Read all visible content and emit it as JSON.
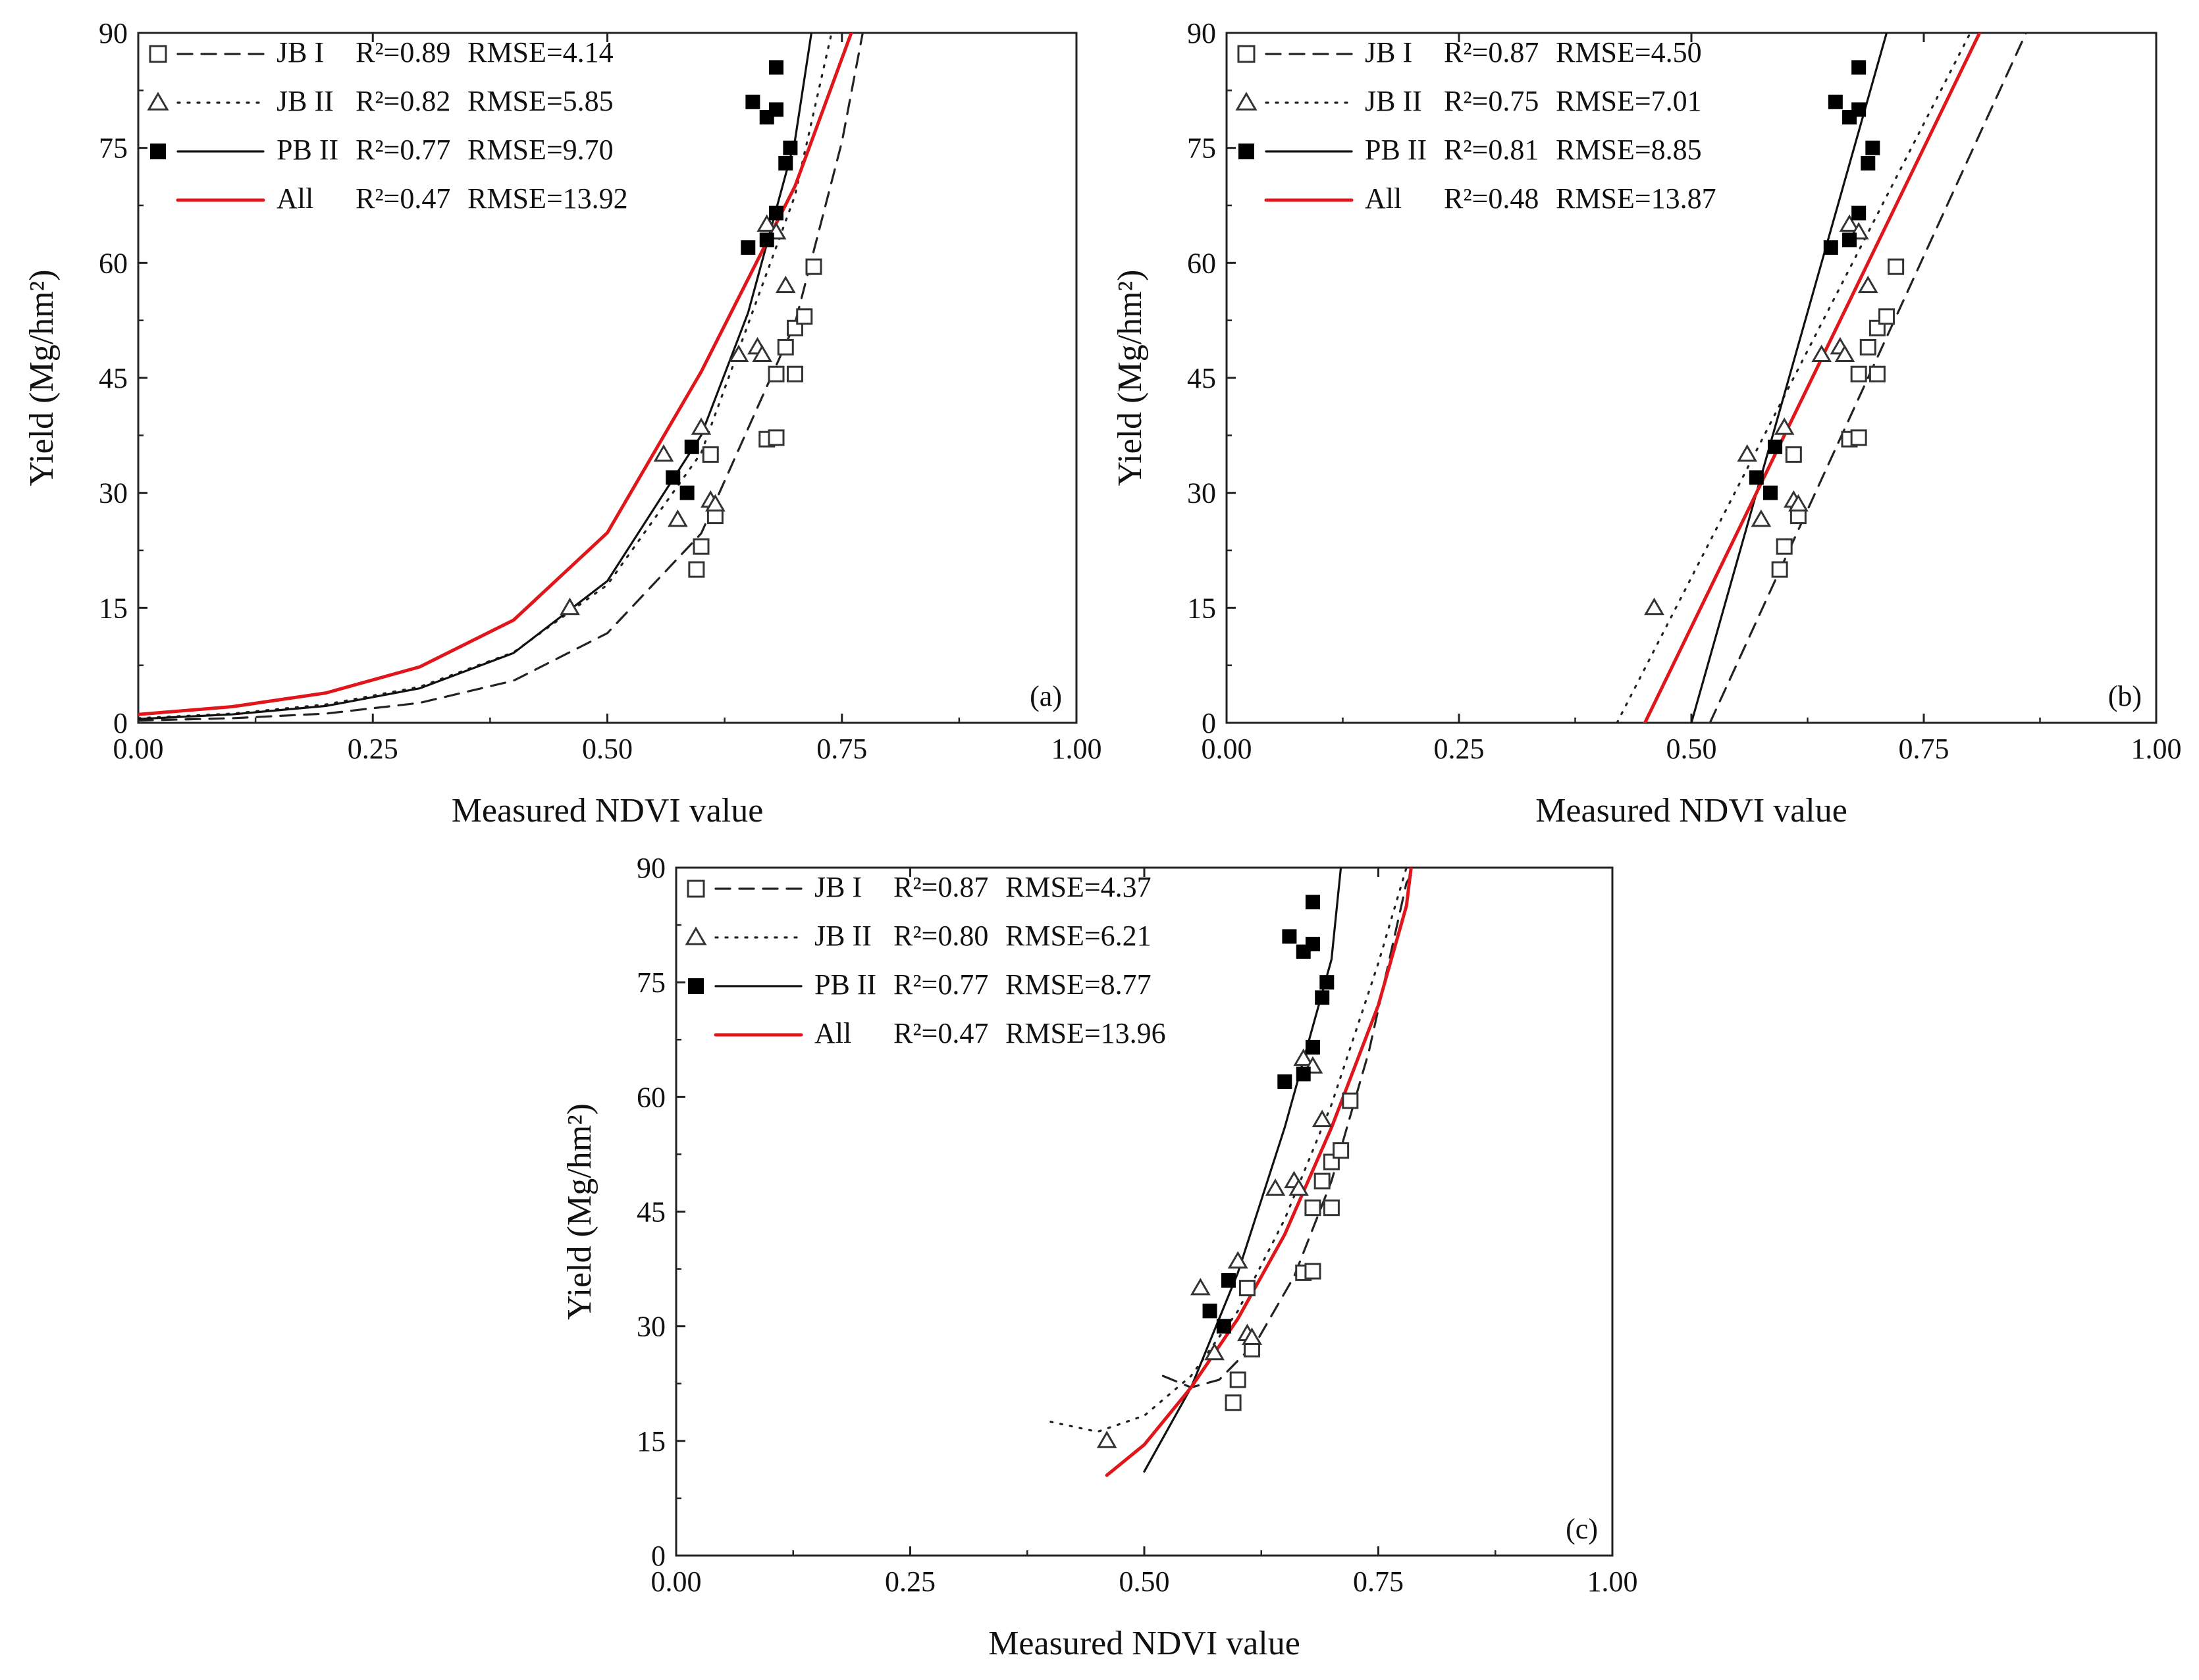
{
  "chart_data": [
    {
      "type": "scatter",
      "panel": "a",
      "panel_label": "(a)",
      "model": "exponential",
      "xlabel": "Measured NDVI value",
      "ylabel": "Yield (Mg/hm²)",
      "xlim": [
        0,
        1
      ],
      "ylim": [
        0,
        90
      ],
      "x_ticks": [
        "0.00",
        "0.25",
        "0.50",
        "0.75",
        "1.00"
      ],
      "y_ticks": [
        "0",
        "15",
        "30",
        "45",
        "60",
        "75",
        "90"
      ],
      "series": [
        {
          "key": "jb1",
          "name": "JB I",
          "r2_text": "R²=0.89",
          "rmse_text": "RMSE=4.14",
          "marker": "open-square",
          "line": "dashed",
          "color": "#222222",
          "fit_points": [
            [
              0,
              0.3
            ],
            [
              0.1,
              0.6
            ],
            [
              0.2,
              1.2
            ],
            [
              0.3,
              2.6
            ],
            [
              0.4,
              5.5
            ],
            [
              0.5,
              11.7
            ],
            [
              0.6,
              24.7
            ],
            [
              0.7,
              52.1
            ],
            [
              0.75,
              75.8
            ],
            [
              0.78,
              95
            ]
          ]
        },
        {
          "key": "jb2",
          "name": "JB II",
          "r2_text": "R²=0.82",
          "rmse_text": "RMSE=5.85",
          "marker": "open-triangle",
          "line": "dotted",
          "color": "#222222",
          "fit_points": [
            [
              0,
              0.6
            ],
            [
              0.1,
              1.2
            ],
            [
              0.2,
              2.4
            ],
            [
              0.3,
              4.7
            ],
            [
              0.4,
              9.2
            ],
            [
              0.5,
              18
            ],
            [
              0.6,
              35.2
            ],
            [
              0.7,
              68.8
            ],
            [
              0.75,
              96
            ]
          ]
        },
        {
          "key": "pb2",
          "name": "PB II",
          "r2_text": "R²=0.77",
          "rmse_text": "RMSE=9.70",
          "marker": "filled-square",
          "line": "solid",
          "color": "#111111",
          "fit_points": [
            [
              0,
              0.5
            ],
            [
              0.1,
              1.1
            ],
            [
              0.2,
              2.2
            ],
            [
              0.3,
              4.5
            ],
            [
              0.4,
              9.1
            ],
            [
              0.5,
              18.5
            ],
            [
              0.6,
              37.5
            ],
            [
              0.65,
              53.5
            ],
            [
              0.7,
              76
            ],
            [
              0.72,
              92
            ]
          ]
        },
        {
          "key": "all",
          "name": "All",
          "r2_text": "R²=0.47",
          "rmse_text": "RMSE=13.92",
          "marker": "none",
          "line": "solid",
          "color": "#e0161b",
          "fit_points": [
            [
              0,
              1.1
            ],
            [
              0.1,
              2.1
            ],
            [
              0.2,
              3.9
            ],
            [
              0.3,
              7.3
            ],
            [
              0.4,
              13.4
            ],
            [
              0.5,
              24.8
            ],
            [
              0.6,
              45.8
            ],
            [
              0.7,
              70
            ],
            [
              0.76,
              90
            ]
          ]
        }
      ]
    },
    {
      "type": "scatter",
      "panel": "b",
      "panel_label": "(b)",
      "model": "linear",
      "xlabel": "Measured NDVI value",
      "ylabel": "Yield (Mg/hm²)",
      "xlim": [
        0,
        1
      ],
      "ylim": [
        0,
        90
      ],
      "x_ticks": [
        "0.00",
        "0.25",
        "0.50",
        "0.75",
        "1.00"
      ],
      "y_ticks": [
        "0",
        "15",
        "30",
        "45",
        "60",
        "75",
        "90"
      ],
      "series": [
        {
          "key": "jb1",
          "name": "JB I",
          "r2_text": "R²=0.87",
          "rmse_text": "RMSE=4.50",
          "marker": "open-square",
          "line": "dashed",
          "color": "#222222",
          "fit_points": [
            [
              0.52,
              0
            ],
            [
              0.86,
              90
            ]
          ]
        },
        {
          "key": "jb2",
          "name": "JB II",
          "r2_text": "R²=0.75",
          "rmse_text": "RMSE=7.01",
          "marker": "open-triangle",
          "line": "dotted",
          "color": "#222222",
          "fit_points": [
            [
              0.42,
              0
            ],
            [
              0.8,
              90
            ]
          ]
        },
        {
          "key": "pb2",
          "name": "PB II",
          "r2_text": "R²=0.81",
          "rmse_text": "RMSE=8.85",
          "marker": "filled-square",
          "line": "solid",
          "color": "#111111",
          "fit_points": [
            [
              0.5,
              0
            ],
            [
              0.71,
              90
            ]
          ]
        },
        {
          "key": "all",
          "name": "All",
          "r2_text": "R²=0.48",
          "rmse_text": "RMSE=13.87",
          "marker": "none",
          "line": "solid",
          "color": "#e0161b",
          "fit_points": [
            [
              0.45,
              0
            ],
            [
              0.81,
              90
            ]
          ]
        }
      ]
    },
    {
      "type": "scatter",
      "panel": "c",
      "panel_label": "(c)",
      "model": "quadratic",
      "xlabel": "Measured NDVI value",
      "ylabel": "Yield (Mg/hm²)",
      "xlim": [
        0,
        1
      ],
      "ylim": [
        0,
        90
      ],
      "x_ticks": [
        "0.00",
        "0.25",
        "0.50",
        "0.75",
        "1.00"
      ],
      "y_ticks": [
        "0",
        "15",
        "30",
        "45",
        "60",
        "75",
        "90"
      ],
      "series": [
        {
          "key": "jb1",
          "name": "JB I",
          "r2_text": "R²=0.87",
          "rmse_text": "RMSE=4.37",
          "marker": "open-square",
          "line": "dashed",
          "color": "#222222",
          "fit_points": [
            [
              0.52,
              23.5
            ],
            [
              0.55,
              22
            ],
            [
              0.58,
              23
            ],
            [
              0.62,
              28
            ],
            [
              0.66,
              36.5
            ],
            [
              0.7,
              49
            ],
            [
              0.74,
              66
            ],
            [
              0.78,
              88
            ],
            [
              0.79,
              90
            ]
          ]
        },
        {
          "key": "jb2",
          "name": "JB II",
          "r2_text": "R²=0.80",
          "rmse_text": "RMSE=6.21",
          "marker": "open-triangle",
          "line": "dotted",
          "color": "#222222",
          "fit_points": [
            [
              0.4,
              17.5
            ],
            [
              0.45,
              16.2
            ],
            [
              0.5,
              18.3
            ],
            [
              0.55,
              23.5
            ],
            [
              0.6,
              32
            ],
            [
              0.65,
              44
            ],
            [
              0.7,
              59
            ],
            [
              0.75,
              77.5
            ],
            [
              0.78,
              90
            ]
          ]
        },
        {
          "key": "pb2",
          "name": "PB II",
          "r2_text": "R²=0.77",
          "rmse_text": "RMSE=8.77",
          "marker": "filled-square",
          "line": "solid",
          "color": "#111111",
          "fit_points": [
            [
              0.5,
              11
            ],
            [
              0.55,
              22
            ],
            [
              0.6,
              37
            ],
            [
              0.65,
              56
            ],
            [
              0.7,
              78
            ],
            [
              0.71,
              90
            ]
          ]
        },
        {
          "key": "all",
          "name": "All",
          "r2_text": "R²=0.47",
          "rmse_text": "RMSE=13.96",
          "marker": "none",
          "line": "solid",
          "color": "#e0161b",
          "fit_points": [
            [
              0.46,
              10.5
            ],
            [
              0.5,
              14.5
            ],
            [
              0.55,
              22
            ],
            [
              0.6,
              31
            ],
            [
              0.65,
              42
            ],
            [
              0.7,
              56
            ],
            [
              0.75,
              72
            ],
            [
              0.78,
              85
            ],
            [
              0.785,
              90
            ]
          ]
        }
      ]
    }
  ],
  "observations": {
    "jb1": [
      [
        0.595,
        20
      ],
      [
        0.6,
        23
      ],
      [
        0.615,
        27
      ],
      [
        0.61,
        35
      ],
      [
        0.67,
        37
      ],
      [
        0.68,
        37.2
      ],
      [
        0.68,
        45.5
      ],
      [
        0.7,
        45.5
      ],
      [
        0.69,
        49
      ],
      [
        0.7,
        51.5
      ],
      [
        0.71,
        53
      ],
      [
        0.72,
        59.5
      ]
    ],
    "jb2": [
      [
        0.46,
        15
      ],
      [
        0.56,
        35
      ],
      [
        0.575,
        26.5
      ],
      [
        0.6,
        38.5
      ],
      [
        0.61,
        29
      ],
      [
        0.615,
        28.5
      ],
      [
        0.64,
        48
      ],
      [
        0.66,
        49
      ],
      [
        0.665,
        48
      ],
      [
        0.67,
        65
      ],
      [
        0.69,
        57
      ],
      [
        0.68,
        64
      ]
    ],
    "pb2": [
      [
        0.57,
        32
      ],
      [
        0.585,
        30
      ],
      [
        0.59,
        36
      ],
      [
        0.65,
        62
      ],
      [
        0.67,
        63
      ],
      [
        0.68,
        66.5
      ],
      [
        0.69,
        73
      ],
      [
        0.695,
        75
      ],
      [
        0.68,
        80
      ],
      [
        0.655,
        81
      ],
      [
        0.67,
        79
      ],
      [
        0.68,
        85.5
      ]
    ]
  }
}
